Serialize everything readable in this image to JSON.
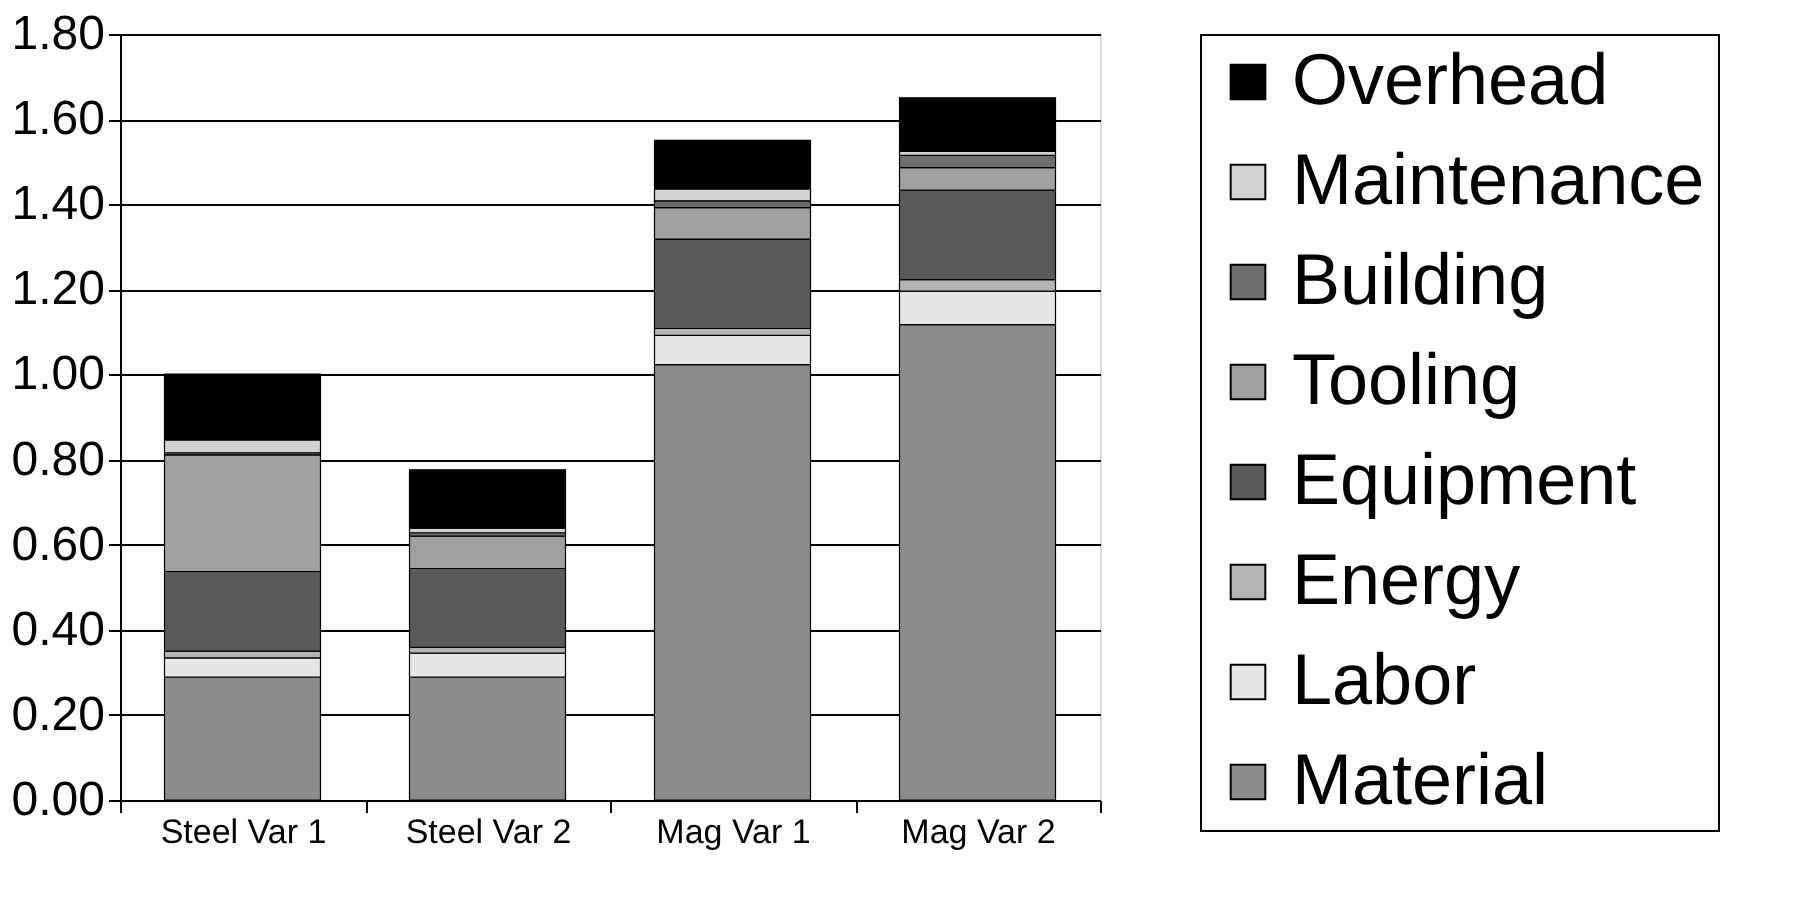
{
  "chart_data": {
    "type": "bar",
    "stacked": true,
    "categories": [
      "Steel Var 1",
      "Steel Var 2",
      "Mag Var 1",
      "Mag Var 2"
    ],
    "series": [
      {
        "name": "Material",
        "color": "#8c8c8c",
        "values": [
          0.289,
          0.289,
          1.023,
          1.117
        ]
      },
      {
        "name": "Labor",
        "color": "#e6e6e6",
        "values": [
          0.045,
          0.056,
          0.069,
          0.079
        ]
      },
      {
        "name": "Energy",
        "color": "#b4b4b4",
        "values": [
          0.016,
          0.014,
          0.016,
          0.027
        ]
      },
      {
        "name": "Equipment",
        "color": "#5a5a5a",
        "values": [
          0.187,
          0.185,
          0.21,
          0.21
        ]
      },
      {
        "name": "Tooling",
        "color": "#a0a0a0",
        "values": [
          0.274,
          0.076,
          0.074,
          0.053
        ]
      },
      {
        "name": "Building",
        "color": "#6e6e6e",
        "values": [
          0.005,
          0.008,
          0.016,
          0.029
        ]
      },
      {
        "name": "Maintenance",
        "color": "#d2d2d2",
        "values": [
          0.03,
          0.011,
          0.028,
          0.009
        ]
      },
      {
        "name": "Overhead",
        "color": "#000000",
        "values": [
          0.155,
          0.137,
          0.114,
          0.126
        ]
      }
    ],
    "ylim": [
      0,
      1.8
    ],
    "yticks": [
      {
        "value": 0,
        "label": "0.00"
      },
      {
        "value": 0.2,
        "label": "0.20"
      },
      {
        "value": 0.4,
        "label": "0.40"
      },
      {
        "value": 0.6,
        "label": "0.60"
      },
      {
        "value": 0.8,
        "label": "0.80"
      },
      {
        "value": 1.0,
        "label": "1.00"
      },
      {
        "value": 1.2,
        "label": "1.20"
      },
      {
        "value": 1.4,
        "label": "1.40"
      },
      {
        "value": 1.6,
        "label": "1.60"
      },
      {
        "value": 1.8,
        "label": "1.80"
      }
    ],
    "grid": "y",
    "legend": "right"
  }
}
